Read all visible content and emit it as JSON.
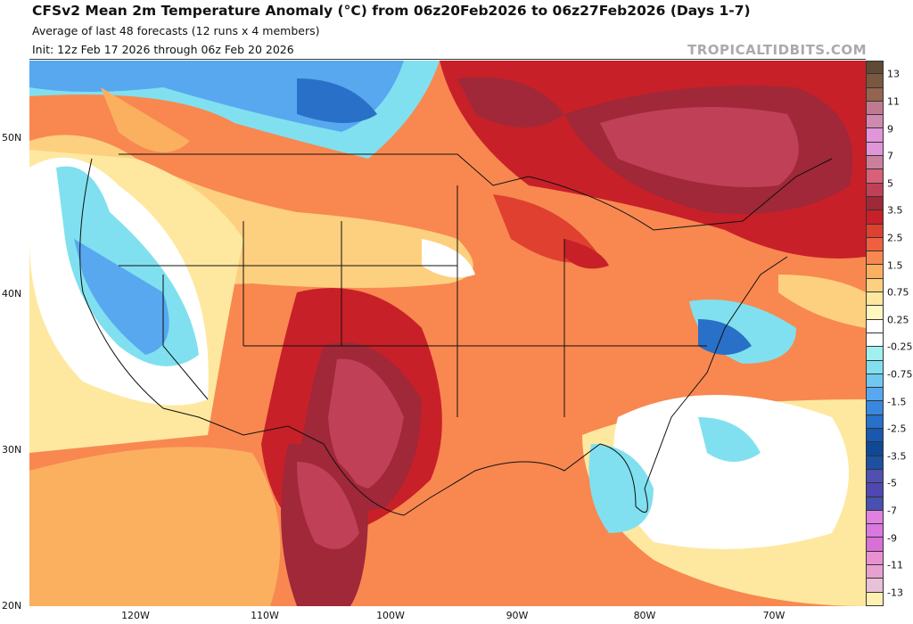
{
  "header": {
    "title": "CFSv2 Mean 2m Temperature Anomaly (°C) from 06z20Feb2026 to 06z27Feb2026 (Days 1-7)",
    "subtitle": "Average of last 48 forecasts (12 runs x 4 members)",
    "init": "Init: 12z Feb 17 2026 through 06z Feb 20 2026",
    "brand": "TROPICALTIDBITS.COM"
  },
  "axes": {
    "lat_labels": [
      "50N",
      "40N",
      "30N",
      "20N"
    ],
    "lon_labels": [
      "120W",
      "110W",
      "100W",
      "90W",
      "80W",
      "70W"
    ]
  },
  "colorbar": {
    "labels": [
      "13",
      "11",
      "9",
      "7",
      "5",
      "3.5",
      "2.5",
      "1.5",
      "0.75",
      "0.25",
      "-0.25",
      "-0.75",
      "-1.5",
      "-2.5",
      "-3.5",
      "-5",
      "-7",
      "-9",
      "-11",
      "-13"
    ],
    "colors": [
      "#5e4a36",
      "#7a5840",
      "#946450",
      "#c07a8f",
      "#d08ab0",
      "#e295d8",
      "#e095d8",
      "#cc7f9b",
      "#d86078",
      "#c04058",
      "#a02838",
      "#c82028",
      "#e04030",
      "#f06040",
      "#f88850",
      "#fbb060",
      "#fdd080",
      "#fee8a0",
      "#fef8c0",
      "#ffffff",
      "#ffffff",
      "#a0f0f0",
      "#80e0f0",
      "#70c8f0",
      "#58a8f0",
      "#3888e0",
      "#2870c8",
      "#1858b0",
      "#104898",
      "#1c50a0",
      "#5050b0",
      "#5048b0",
      "#4850b0",
      "#e080e0",
      "#d878e0",
      "#d870d8",
      "#e890d0",
      "#e8a0d0",
      "#e8c0d8",
      "#fff0b0"
    ]
  }
}
